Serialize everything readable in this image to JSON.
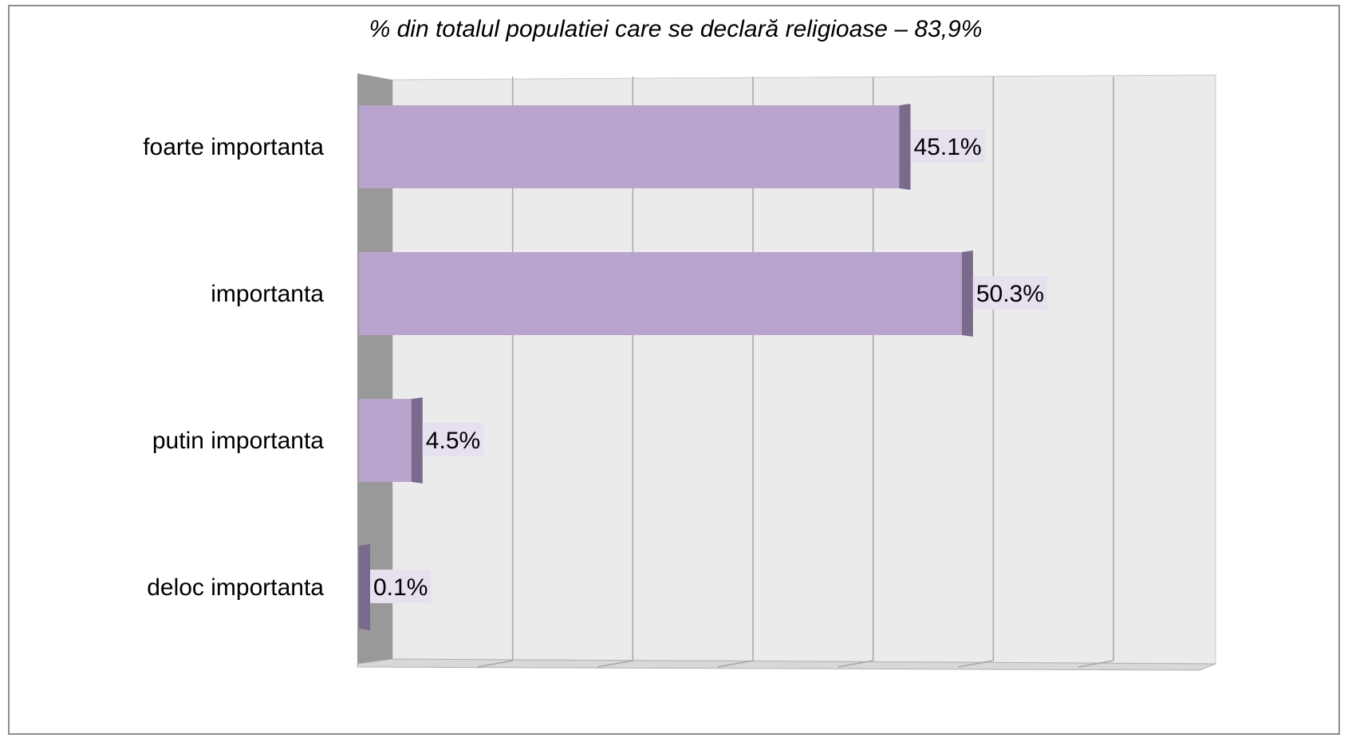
{
  "chart_data": {
    "type": "bar",
    "orientation": "horizontal",
    "three_d": true,
    "title": "% din totalul populatiei care se declară religioase – 83,9%",
    "categories": [
      "foarte importanta",
      "importanta",
      "putin importanta",
      "deloc importanta"
    ],
    "values": [
      45.1,
      50.3,
      4.5,
      0.1
    ],
    "value_labels": [
      "45.1%",
      "50.3%",
      "4.5%",
      "0.1%"
    ],
    "xlim": [
      0,
      60
    ],
    "grid": true,
    "legend": "none",
    "colors": {
      "bar_front": "#b8a4cc",
      "bar_side": "#7a6a8c",
      "wall": "#ebebeb",
      "side_wall": "#999999",
      "floor": "#d8d8d8",
      "gridline": "#a6a6a6",
      "label_bg": "#e7e0ee"
    }
  }
}
